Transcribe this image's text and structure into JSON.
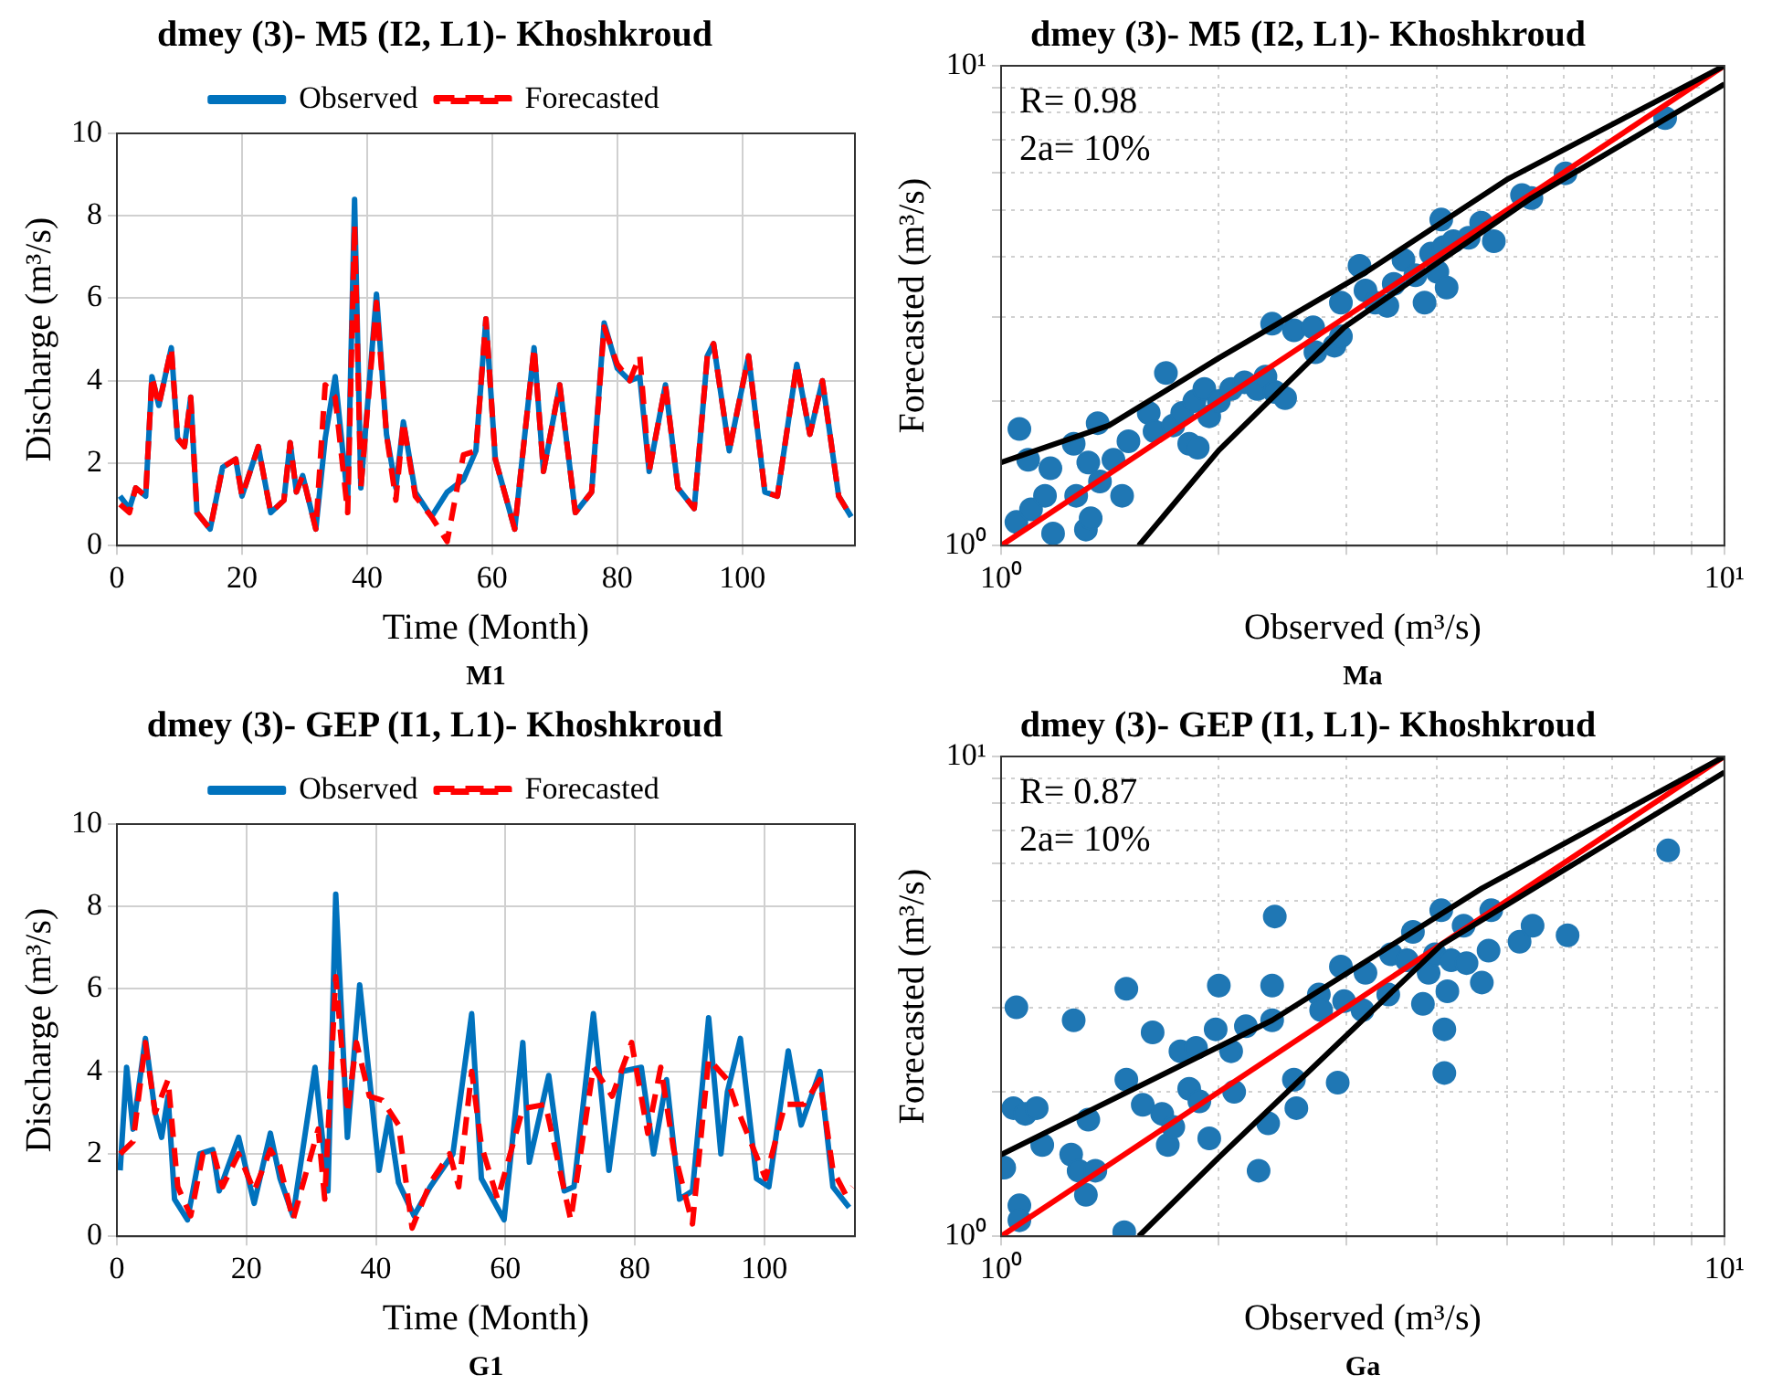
{
  "chart_data": [
    {
      "type": "line",
      "title": "dmey (3)- M5 (I2, L1)- Khoshkroud",
      "xlabel": "Time (Month)",
      "ylabel": "Discharge (m³/s)",
      "annotations": [
        "M1"
      ],
      "xlim": [
        0,
        118
      ],
      "xticks": [
        0,
        20,
        40,
        60,
        80,
        100
      ],
      "ylim": [
        0,
        10
      ],
      "yticks": [
        0,
        2,
        4,
        6,
        8,
        10
      ],
      "grid": true,
      "legend": "top",
      "marker": "none",
      "series": [
        {
          "name": "Observed",
          "color": "#0072bd",
          "line_style": "solid",
          "x": [
            0.5,
            2,
            3,
            4.6,
            5.6,
            6.7,
            8.7,
            9.7,
            10.8,
            11.8,
            12.8,
            14.9,
            16.9,
            19,
            20,
            22.6,
            24.6,
            26.7,
            27.7,
            28.7,
            29.7,
            31.8,
            33.3,
            34.9,
            36.9,
            38,
            39,
            41.5,
            43.1,
            44.6,
            45.8,
            47.7,
            50.3,
            52.8,
            55.4,
            57.4,
            59,
            60.5,
            63.6,
            66.7,
            68.2,
            70.8,
            73.3,
            75.9,
            77.9,
            80,
            82,
            83.6,
            85.1,
            87.7,
            89.7,
            92.3,
            94.4,
            95.4,
            97.9,
            99.5,
            101,
            103.6,
            105.6,
            108.7,
            110.8,
            112.8,
            115.4,
            117.4
          ],
          "values": [
            1.2,
            0.9,
            1.4,
            1.2,
            4.1,
            3.4,
            4.8,
            2.6,
            2.4,
            3.6,
            0.8,
            0.4,
            1.9,
            2.1,
            1.2,
            2.4,
            0.8,
            1.1,
            2.5,
            1.3,
            1.7,
            0.4,
            2.6,
            4.1,
            1.1,
            8.4,
            1.4,
            6.1,
            2.7,
            1.4,
            3.0,
            1.3,
            0.7,
            1.3,
            1.6,
            2.3,
            5.5,
            2.1,
            0.4,
            4.8,
            1.8,
            3.9,
            0.8,
            1.3,
            5.4,
            4.3,
            4.0,
            4.1,
            1.8,
            3.9,
            1.4,
            0.9,
            4.6,
            4.9,
            2.3,
            3.5,
            4.6,
            1.3,
            1.2,
            4.4,
            2.7,
            4.0,
            1.2,
            0.7
          ]
        },
        {
          "name": "Forecasted",
          "color": "#ff0000",
          "line_style": "dashed",
          "x": [
            0.5,
            2,
            3,
            4.6,
            5.6,
            6.7,
            8.7,
            9.7,
            10.8,
            11.8,
            12.8,
            14.9,
            16.9,
            19,
            20,
            22.6,
            24.6,
            26.7,
            27.7,
            28.7,
            29.7,
            31.8,
            33.3,
            34.9,
            36.9,
            38,
            39,
            41.5,
            43.1,
            44.6,
            45.8,
            47.7,
            50.3,
            52.8,
            55.4,
            57.4,
            59,
            60.5,
            63.6,
            66.7,
            68.2,
            70.8,
            73.3,
            75.9,
            77.9,
            80,
            82,
            83.6,
            85.1,
            87.7,
            89.7,
            92.3,
            94.4,
            95.4,
            97.9,
            99.5,
            101,
            103.6,
            105.6,
            108.7,
            110.8,
            112.8,
            115.4,
            117.4
          ],
          "values": [
            1.0,
            0.8,
            1.4,
            1.2,
            4.1,
            3.4,
            4.8,
            2.6,
            2.4,
            3.6,
            0.8,
            0.4,
            1.9,
            2.1,
            1.2,
            2.4,
            0.8,
            1.1,
            2.5,
            1.3,
            1.7,
            0.4,
            3.9,
            3.6,
            0.8,
            7.8,
            1.4,
            5.9,
            2.7,
            1.1,
            3.0,
            1.2,
            0.7,
            0.1,
            2.2,
            2.3,
            5.5,
            2.1,
            0.4,
            4.8,
            1.8,
            3.9,
            0.8,
            1.3,
            5.3,
            4.4,
            4.0,
            4.6,
            1.8,
            3.9,
            1.4,
            0.9,
            4.6,
            4.9,
            2.3,
            3.5,
            4.6,
            1.3,
            1.2,
            4.4,
            2.7,
            4.0,
            1.2,
            0.7
          ]
        }
      ]
    },
    {
      "type": "scatter",
      "title": "dmey (3)- M5 (I2, L1)- Khoshkroud",
      "xlabel": "Observed (m³/s)",
      "ylabel": "Forecasted (m³/s)",
      "annotations": [
        "R= 0.98",
        "2a= 10%",
        "Ma"
      ],
      "log": "xy",
      "xlim": [
        1,
        10
      ],
      "ylim": [
        1,
        10
      ],
      "xticks": [
        {
          "value": 1,
          "label": "10⁰"
        },
        {
          "value": 2,
          "label": null
        },
        {
          "value": 3,
          "label": null
        },
        {
          "value": 4,
          "label": null
        },
        {
          "value": 5,
          "label": null
        },
        {
          "value": 6,
          "label": null
        },
        {
          "value": 7,
          "label": null
        },
        {
          "value": 8,
          "label": null
        },
        {
          "value": 9,
          "label": null
        },
        {
          "value": 10,
          "label": "10¹"
        }
      ],
      "yticks": [
        {
          "value": 1,
          "label": "10⁰"
        },
        {
          "value": 2,
          "label": null
        },
        {
          "value": 3,
          "label": null
        },
        {
          "value": 4,
          "label": null
        },
        {
          "value": 5,
          "label": null
        },
        {
          "value": 6,
          "label": null
        },
        {
          "value": 7,
          "label": null
        },
        {
          "value": 8,
          "label": null
        },
        {
          "value": 9,
          "label": null
        },
        {
          "value": 10,
          "label": "10¹"
        }
      ],
      "grid": true,
      "series": [
        {
          "type": "scatter",
          "color": "#1f77b4",
          "marker": "circle",
          "x": [
            1.06,
            1.09,
            1.05,
            1.1,
            1.15,
            1.17,
            1.18,
            1.26,
            1.27,
            1.32,
            1.31,
            1.33,
            1.36,
            1.37,
            1.43,
            1.47,
            1.5,
            1.6,
            1.63,
            1.69,
            1.73,
            1.78,
            1.82,
            1.85,
            1.87,
            1.91,
            1.94,
            2.0,
            2.08,
            2.17,
            2.26,
            2.32,
            2.37,
            2.39,
            2.47,
            2.54,
            2.7,
            2.72,
            2.89,
            2.95,
            2.95,
            3.13,
            3.19,
            3.29,
            3.42,
            3.49,
            3.6,
            3.74,
            3.85,
            3.93,
            4.01,
            4.09,
            4.13,
            4.06,
            4.22,
            4.43,
            4.61,
            4.8,
            5.25,
            5.41,
            6.03,
            8.28
          ],
          "values": [
            1.75,
            1.51,
            1.12,
            1.19,
            1.27,
            1.45,
            1.06,
            1.63,
            1.27,
            1.49,
            1.08,
            1.14,
            1.8,
            1.36,
            1.51,
            1.27,
            1.65,
            1.89,
            1.73,
            2.29,
            1.78,
            1.89,
            1.63,
            2.0,
            1.6,
            2.12,
            1.86,
            2.0,
            2.12,
            2.19,
            2.12,
            2.25,
            2.9,
            2.09,
            2.03,
            2.81,
            2.85,
            2.53,
            2.61,
            2.73,
            3.21,
            3.83,
            3.4,
            3.21,
            3.16,
            3.51,
            3.94,
            3.66,
            3.21,
            4.06,
            3.72,
            4.19,
            3.45,
            4.78,
            4.31,
            4.38,
            4.71,
            4.31,
            5.38,
            5.3,
            5.97,
            7.78
          ]
        },
        {
          "type": "line",
          "color": "#ff0000",
          "marker": "none",
          "x": [
            1,
            10
          ],
          "values": [
            1,
            10
          ]
        },
        {
          "type": "line",
          "color": "#000000",
          "marker": "none",
          "x": [
            1,
            1.41,
            2.0,
            3.2,
            5.0,
            10
          ],
          "values": [
            1.49,
            1.78,
            2.46,
            3.72,
            5.79,
            10
          ]
        },
        {
          "type": "line",
          "color": "#000000",
          "marker": "none",
          "x": [
            1.55,
            2.0,
            2.98,
            5.41,
            10
          ],
          "values": [
            1,
            1.58,
            2.85,
            5.3,
            9.16
          ]
        }
      ]
    },
    {
      "type": "line",
      "title": "dmey (3)- GEP (I1, L1)- Khoshkroud",
      "xlabel": "Time (Month)",
      "ylabel": "Discharge (m³/s)",
      "annotations": [
        "G1"
      ],
      "xlim": [
        0,
        114
      ],
      "xticks": [
        0,
        20,
        40,
        60,
        80,
        100
      ],
      "ylim": [
        0,
        10
      ],
      "yticks": [
        0,
        2,
        4,
        6,
        8,
        10
      ],
      "grid": true,
      "legend": "top",
      "marker": "none",
      "series": [
        {
          "name": "Observed",
          "color": "#0072bd",
          "line_style": "solid",
          "x": [
            0.5,
            1.5,
            2.5,
            4.4,
            5.9,
            6.9,
            7.9,
            8.9,
            10.9,
            12.8,
            14.8,
            15.8,
            18.8,
            21.2,
            23.7,
            25.2,
            27.2,
            30.6,
            32.6,
            33.8,
            35.6,
            37.5,
            40.5,
            42,
            43.5,
            45.9,
            48.4,
            51.9,
            54.8,
            56.3,
            59.8,
            62.7,
            63.7,
            66.7,
            69.1,
            70.6,
            73.6,
            76,
            78,
            81,
            82.9,
            84.9,
            86.9,
            88.9,
            91.4,
            93.3,
            94.3,
            96.3,
            98.8,
            100.7,
            103.7,
            105.7,
            108.6,
            110.6,
            113.1
          ],
          "values": [
            1.6,
            4.1,
            2.6,
            4.8,
            3.0,
            2.4,
            3.4,
            0.9,
            0.4,
            2.0,
            2.1,
            1.1,
            2.4,
            0.8,
            2.5,
            1.4,
            0.5,
            4.1,
            1.1,
            8.3,
            2.4,
            6.1,
            1.6,
            2.9,
            1.3,
            0.5,
            1.2,
            2.0,
            5.4,
            1.4,
            0.4,
            4.7,
            1.8,
            3.9,
            1.1,
            1.2,
            5.4,
            1.6,
            4.0,
            4.1,
            2.0,
            3.8,
            0.9,
            1.1,
            5.3,
            2.0,
            3.5,
            4.8,
            1.4,
            1.2,
            4.5,
            2.7,
            4.0,
            1.2,
            0.7
          ]
        },
        {
          "name": "Forecasted",
          "color": "#ff0000",
          "line_style": "dashed",
          "x": [
            0.5,
            2.5,
            4.4,
            5.9,
            7.9,
            9.4,
            11.4,
            13.3,
            14.8,
            16.3,
            18.8,
            21.2,
            23.7,
            25.2,
            27.2,
            31.1,
            32.1,
            33.8,
            35.6,
            37,
            39,
            41,
            43.5,
            45.6,
            48.4,
            51.4,
            52.8,
            54.8,
            56.3,
            58.8,
            62.7,
            66.2,
            70.1,
            73.6,
            76.5,
            79.5,
            82,
            84,
            86,
            88.9,
            91.4,
            94.3,
            95.8,
            100.2,
            103.2,
            106.1,
            108.6,
            110.6,
            112.6,
            113.6
          ],
          "values": [
            2.0,
            2.3,
            4.7,
            3.0,
            3.8,
            1.2,
            0.5,
            2.0,
            2.1,
            1.2,
            2.0,
            1.1,
            2.1,
            1.7,
            0.4,
            2.6,
            0.9,
            6.3,
            3.0,
            4.7,
            3.4,
            3.3,
            2.7,
            0.2,
            1.3,
            2.0,
            1.2,
            4.0,
            2.2,
            0.9,
            3.1,
            3.2,
            0.4,
            4.1,
            3.4,
            4.7,
            2.5,
            4.1,
            2.1,
            0.3,
            4.3,
            3.8,
            3.1,
            1.4,
            3.2,
            3.2,
            3.8,
            1.6,
            1.0,
            1.2
          ]
        }
      ]
    },
    {
      "type": "scatter",
      "title": "dmey (3)- GEP (I1, L1)- Khoshkroud",
      "xlabel": "Observed (m³/s)",
      "ylabel": "Forecasted (m³/s)",
      "annotations": [
        "R= 0.87",
        "2a= 10%",
        "Ga"
      ],
      "log": "xy",
      "xlim": [
        1,
        10
      ],
      "ylim": [
        1,
        10
      ],
      "xticks": [
        {
          "value": 1,
          "label": "10⁰"
        },
        {
          "value": 2,
          "label": null
        },
        {
          "value": 3,
          "label": null
        },
        {
          "value": 4,
          "label": null
        },
        {
          "value": 5,
          "label": null
        },
        {
          "value": 6,
          "label": null
        },
        {
          "value": 7,
          "label": null
        },
        {
          "value": 8,
          "label": null
        },
        {
          "value": 9,
          "label": null
        },
        {
          "value": 10,
          "label": "10¹"
        }
      ],
      "yticks": [
        {
          "value": 1,
          "label": "10⁰"
        },
        {
          "value": 2,
          "label": null
        },
        {
          "value": 3,
          "label": null
        },
        {
          "value": 4,
          "label": null
        },
        {
          "value": 5,
          "label": null
        },
        {
          "value": 6,
          "label": null
        },
        {
          "value": 7,
          "label": null
        },
        {
          "value": 8,
          "label": null
        },
        {
          "value": 9,
          "label": null
        },
        {
          "value": 10,
          "label": "10¹"
        }
      ],
      "grid": true,
      "series": [
        {
          "type": "scatter",
          "color": "#1f77b4",
          "marker": "circle",
          "x": [
            1.01,
            1.05,
            1.04,
            1.08,
            1.12,
            1.14,
            1.06,
            1.06,
            1.25,
            1.26,
            1.28,
            1.31,
            1.32,
            1.35,
            1.48,
            1.49,
            1.49,
            1.57,
            1.62,
            1.67,
            1.7,
            1.73,
            1.77,
            1.82,
            1.86,
            1.88,
            1.94,
            1.98,
            2.0,
            2.08,
            2.1,
            2.18,
            2.27,
            2.34,
            2.37,
            2.37,
            2.39,
            2.56,
            2.54,
            2.75,
            2.77,
            2.92,
            2.95,
            2.98,
            3.16,
            3.19,
            3.43,
            3.46,
            3.64,
            3.71,
            3.83,
            3.9,
            3.98,
            4.06,
            4.1,
            4.1,
            4.14,
            4.19,
            4.36,
            4.4,
            4.62,
            4.72,
            4.76,
            5.21,
            5.43,
            6.07,
            8.36
          ],
          "values": [
            1.39,
            3.0,
            1.85,
            1.8,
            1.85,
            1.55,
            1.16,
            1.08,
            1.48,
            2.82,
            1.37,
            1.22,
            1.75,
            1.37,
            1.02,
            3.28,
            2.12,
            1.88,
            2.66,
            1.8,
            1.55,
            1.69,
            2.43,
            2.03,
            2.47,
            1.91,
            1.6,
            2.7,
            3.33,
            2.43,
            2.0,
            2.74,
            1.37,
            1.72,
            3.33,
            2.82,
            4.64,
            1.85,
            2.12,
            3.19,
            2.96,
            2.09,
            3.65,
            3.09,
            2.96,
            3.54,
            3.19,
            3.87,
            3.76,
            4.31,
            3.05,
            3.54,
            3.87,
            4.78,
            2.7,
            2.19,
            3.24,
            3.76,
            4.44,
            3.71,
            3.38,
            3.94,
            4.78,
            4.11,
            4.44,
            4.24,
            6.37
          ]
        },
        {
          "type": "line",
          "color": "#ff0000",
          "marker": "none",
          "x": [
            1,
            10
          ],
          "values": [
            1,
            10
          ]
        },
        {
          "type": "line",
          "color": "#000000",
          "marker": "none",
          "x": [
            1,
            2.37,
            4.62,
            10
          ],
          "values": [
            1.48,
            2.82,
            5.31,
            10
          ]
        },
        {
          "type": "line",
          "color": "#000000",
          "marker": "none",
          "x": [
            1.55,
            2.0,
            4.06,
            10
          ],
          "values": [
            1,
            1.46,
            4.05,
            9.27
          ]
        }
      ]
    }
  ]
}
